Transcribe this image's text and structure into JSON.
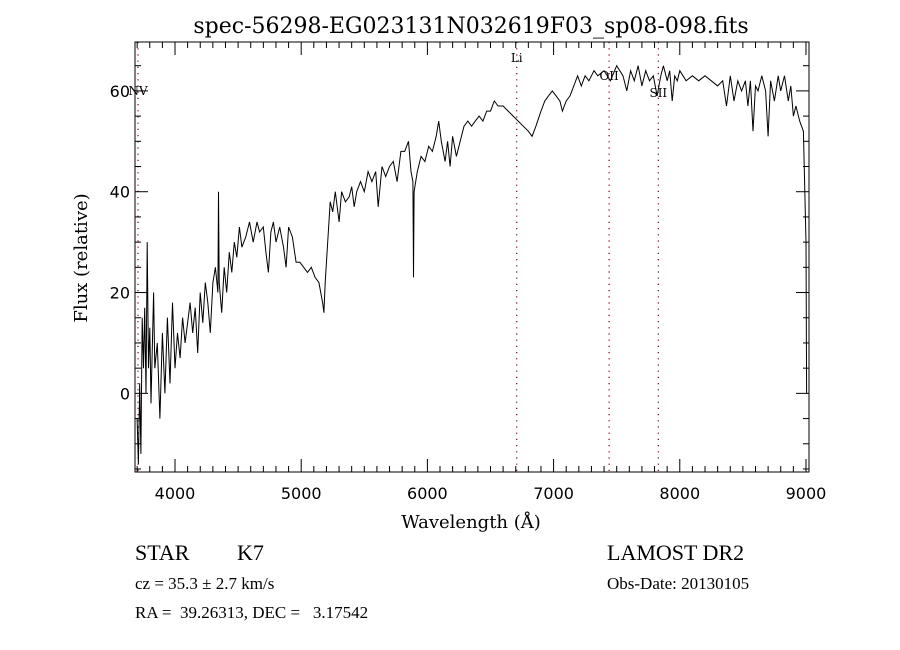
{
  "chart_data": {
    "type": "line",
    "title": "spec-56298-EG023131N032619F03_sp08-098.fits",
    "xlabel": "Wavelength (Å)",
    "ylabel": "Flux (relative)",
    "xlim": [
      3683,
      9024
    ],
    "ylim": [
      -15.6,
      69.7
    ],
    "xticks": [
      4000,
      5000,
      6000,
      7000,
      8000,
      9000
    ],
    "yticks": [
      0,
      20,
      40,
      60
    ],
    "grid": false,
    "line_color": "#000000",
    "marker_color": "#800000",
    "lines": [
      {
        "label": "NV",
        "wavelength": 3707
      },
      {
        "label": "Li",
        "wavelength": 6708
      },
      {
        "label": "OII",
        "wavelength": 7440
      },
      {
        "label": "SII",
        "wavelength": 7830
      }
    ],
    "series": [
      {
        "name": "spectrum",
        "x": [
          3700,
          3710,
          3720,
          3730,
          3740,
          3750,
          3760,
          3770,
          3780,
          3790,
          3800,
          3810,
          3830,
          3840,
          3860,
          3880,
          3900,
          3920,
          3940,
          3960,
          3980,
          4000,
          4020,
          4040,
          4060,
          4080,
          4100,
          4120,
          4140,
          4160,
          4180,
          4200,
          4220,
          4240,
          4260,
          4280,
          4300,
          4320,
          4340,
          4345,
          4350,
          4370,
          4390,
          4410,
          4430,
          4450,
          4470,
          4490,
          4510,
          4530,
          4560,
          4590,
          4620,
          4650,
          4670,
          4700,
          4720,
          4740,
          4760,
          4780,
          4800,
          4830,
          4860,
          4880,
          4900,
          4930,
          4960,
          4990,
          5020,
          5050,
          5080,
          5110,
          5140,
          5170,
          5180,
          5190,
          5210,
          5230,
          5250,
          5270,
          5300,
          5320,
          5350,
          5380,
          5400,
          5420,
          5440,
          5470,
          5500,
          5530,
          5560,
          5590,
          5610,
          5640,
          5670,
          5700,
          5730,
          5760,
          5790,
          5820,
          5850,
          5870,
          5885,
          5890,
          5895,
          5920,
          5950,
          5980,
          6010,
          6040,
          6070,
          6090,
          6110,
          6140,
          6160,
          6180,
          6200,
          6230,
          6260,
          6290,
          6320,
          6350,
          6380,
          6410,
          6440,
          6470,
          6500,
          6530,
          6560,
          6600,
          6640,
          6680,
          6720,
          6760,
          6800,
          6830,
          6860,
          6900,
          6930,
          6960,
          6990,
          7020,
          7050,
          7070,
          7100,
          7130,
          7160,
          7190,
          7220,
          7250,
          7280,
          7320,
          7350,
          7400,
          7450,
          7500,
          7550,
          7580,
          7610,
          7640,
          7670,
          7700,
          7730,
          7760,
          7790,
          7820,
          7850,
          7870,
          7900,
          7920,
          7940,
          7960,
          7980,
          8000,
          8050,
          8100,
          8150,
          8200,
          8250,
          8300,
          8340,
          8370,
          8400,
          8430,
          8460,
          8490,
          8520,
          8540,
          8560,
          8580,
          8600,
          8620,
          8650,
          8680,
          8700,
          8720,
          8750,
          8780,
          8800,
          8830,
          8860,
          8880,
          8900,
          8920,
          8950,
          8980,
          9000,
          9005
        ],
        "y": [
          -5,
          -14,
          2,
          -12,
          15,
          5,
          17,
          0,
          30,
          5,
          13,
          -2,
          20,
          5,
          10,
          -5,
          12,
          0,
          15,
          2,
          18,
          5,
          12,
          7,
          15,
          10,
          14,
          18,
          12,
          17,
          8,
          20,
          14,
          22,
          18,
          12,
          22,
          25,
          20,
          40,
          22,
          16,
          25,
          20,
          28,
          24,
          30,
          27,
          33,
          29,
          31,
          34,
          30,
          34,
          32,
          33,
          28,
          24,
          32,
          34,
          30,
          33,
          29,
          25,
          33,
          31,
          26,
          26,
          25,
          24,
          25,
          23,
          22,
          18,
          16,
          22,
          30,
          38,
          36,
          40,
          34,
          40,
          38,
          39,
          41,
          37,
          40,
          42,
          40,
          44,
          42,
          44,
          37,
          45,
          43,
          45,
          46,
          42,
          48,
          48,
          50,
          44,
          42,
          23,
          40,
          44,
          47,
          46,
          49,
          48,
          51,
          54,
          50,
          46,
          50,
          45,
          51,
          47,
          50,
          53,
          54,
          53,
          54,
          55,
          54,
          56,
          56,
          58,
          57,
          57,
          56,
          55,
          54,
          53,
          52,
          51,
          53,
          56,
          58,
          59,
          60,
          59,
          58,
          56,
          58,
          59,
          61,
          63,
          61,
          63,
          62,
          64,
          63,
          64,
          62,
          65,
          63,
          60,
          64,
          62,
          65,
          61,
          64,
          62,
          63,
          59,
          63,
          65,
          62,
          64,
          58,
          63,
          62,
          64,
          62,
          63,
          62,
          63,
          62,
          61,
          62,
          57,
          63,
          58,
          62,
          60,
          62,
          57,
          62,
          52,
          61,
          60,
          63,
          60,
          51,
          62,
          58,
          63,
          60,
          63,
          58,
          61,
          55,
          57,
          54,
          52,
          30,
          0
        ]
      }
    ]
  },
  "info": {
    "class": "STAR",
    "subclass": "K7",
    "cz": "cz = 35.3 ± 2.7 km/s",
    "coords": "RA =  39.26313, DEC =   3.17542",
    "survey": "LAMOST DR2",
    "obs_date": "Obs-Date: 20130105"
  }
}
